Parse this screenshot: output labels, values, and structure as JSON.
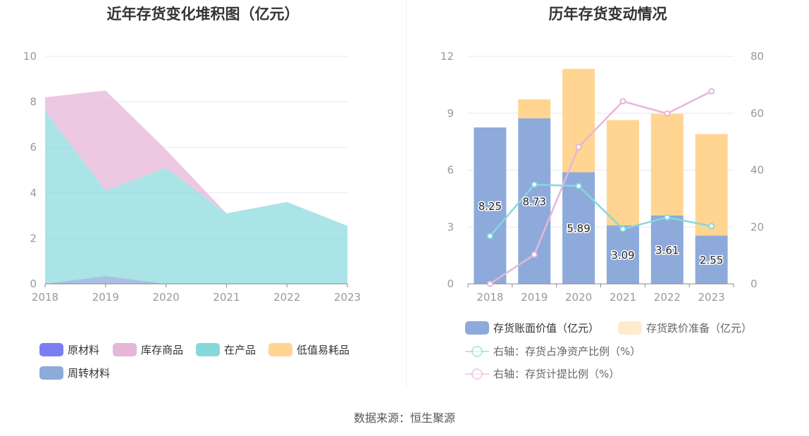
{
  "chart_data": [
    {
      "type": "area",
      "title": "近年存货变化堆积图（亿元）",
      "x": [
        "2018",
        "2019",
        "2020",
        "2021",
        "2022",
        "2023"
      ],
      "ylim": [
        0,
        10
      ],
      "yticks": [
        0,
        2,
        4,
        6,
        8,
        10
      ],
      "grid": true,
      "legend_position": "bottom",
      "series": [
        {
          "name": "原材料",
          "color": "#7b7ef3",
          "values": [
            0,
            0,
            0,
            0,
            0,
            0
          ]
        },
        {
          "name": "库存商品",
          "color": "#e6b6d9",
          "values": [
            0.6,
            4.4,
            0.8,
            0,
            0,
            0
          ]
        },
        {
          "name": "在产品",
          "color": "#86d8dc",
          "values": [
            7.6,
            3.75,
            5.1,
            3.1,
            3.6,
            2.55
          ]
        },
        {
          "name": "低值易耗品",
          "color": "#ffd591",
          "values": [
            0,
            0,
            0,
            0,
            0,
            0
          ]
        },
        {
          "name": "周转材料",
          "color": "#8eaadb",
          "values": [
            0,
            0.35,
            0,
            0,
            0,
            0
          ]
        }
      ]
    },
    {
      "type": "bar+line",
      "title": "历年存货变动情况",
      "x": [
        "2018",
        "2019",
        "2020",
        "2021",
        "2022",
        "2023"
      ],
      "ylim_left": [
        0,
        12
      ],
      "yticks_left": [
        0,
        3,
        6,
        9,
        12
      ],
      "ylim_right": [
        0,
        80
      ],
      "yticks_right": [
        0,
        20,
        40,
        60,
        80
      ],
      "grid": true,
      "legend_position": "bottom",
      "bars": [
        {
          "name": "存货账面价值（亿元）",
          "color": "#8eaadb",
          "values": [
            8.25,
            8.73,
            5.89,
            3.09,
            3.61,
            2.55
          ],
          "labels": [
            "8.25",
            "8.73",
            "5.89",
            "3.09",
            "3.61",
            "2.55"
          ]
        },
        {
          "name": "存货跌价准备（亿元）",
          "color": "#ffd591",
          "values": [
            0,
            1.0,
            5.45,
            5.55,
            5.36,
            5.35
          ]
        }
      ],
      "lines": [
        {
          "name": "右轴：存货占净资产比例（%）",
          "color": "#86d8dc",
          "axis": "right",
          "values": [
            16.8,
            34.9,
            34.4,
            19.3,
            23.4,
            20.3
          ]
        },
        {
          "name": "右轴：存货计提比例（%）",
          "color": "#e6b6d9",
          "axis": "right",
          "values": [
            0,
            10.3,
            48.1,
            64.2,
            59.9,
            67.7
          ]
        }
      ]
    }
  ],
  "source": "数据来源：恒生聚源"
}
